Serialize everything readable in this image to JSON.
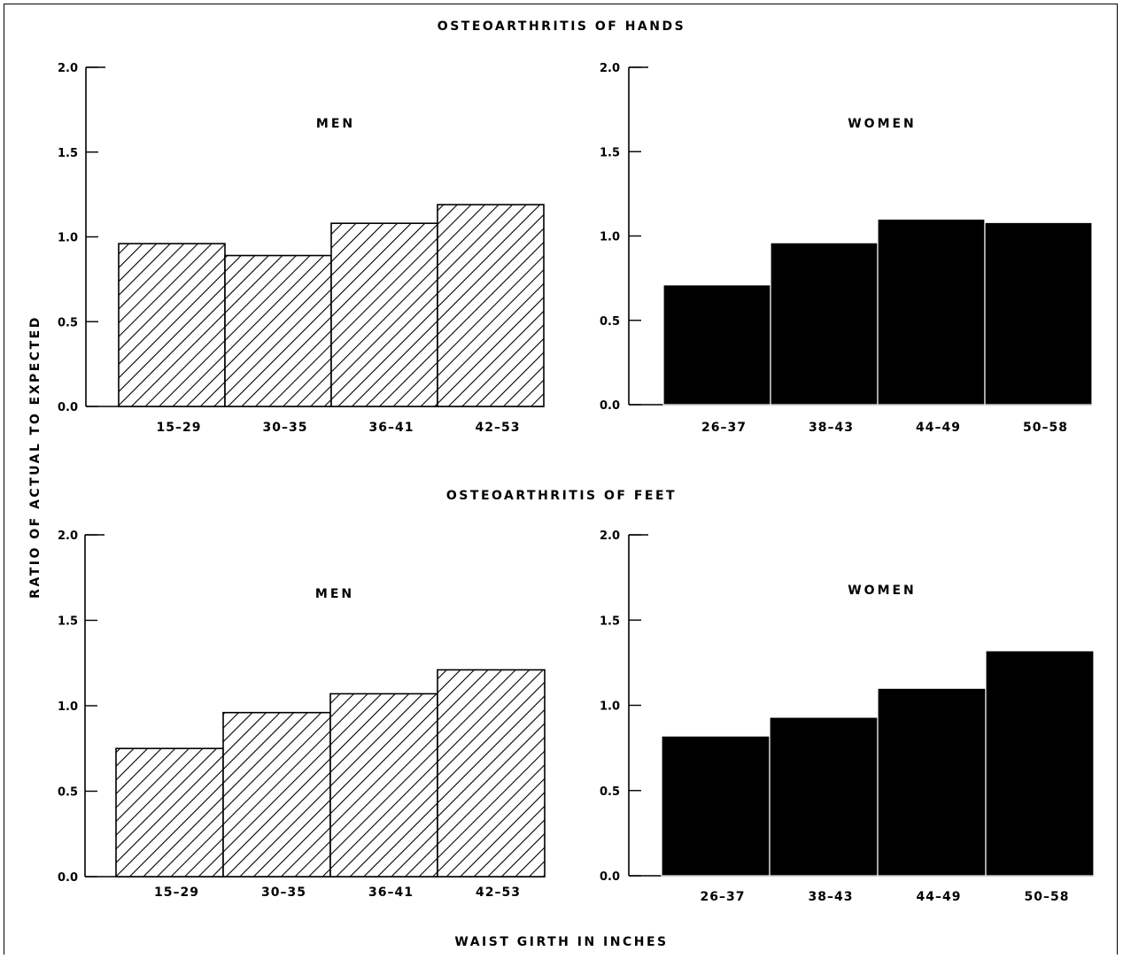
{
  "figure": {
    "hands_title": "OSTEOARTHRITIS OF HANDS",
    "feet_title": "OSTEOARTHRITIS OF FEET",
    "ylabel": "RATIO OF ACTUAL TO EXPECTED",
    "xlabel": "WAIST GIRTH IN INCHES"
  },
  "colors": {
    "ink": "#000000",
    "paper": "#ffffff"
  },
  "chart_data": [
    {
      "type": "bar",
      "panel": "hands-men",
      "label": "MEN",
      "categories": [
        "15–29",
        "30–35",
        "36–41",
        "42–53"
      ],
      "values": [
        0.96,
        0.89,
        1.08,
        1.19
      ],
      "ylim": [
        0,
        2.0
      ],
      "yticks": [
        "0.0",
        "0.5",
        "1.0",
        "1.5",
        "2.0"
      ],
      "fill": "hatched"
    },
    {
      "type": "bar",
      "panel": "hands-women",
      "label": "WOMEN",
      "categories": [
        "26–37",
        "38–43",
        "44–49",
        "50–58"
      ],
      "values": [
        0.71,
        0.96,
        1.1,
        1.08
      ],
      "ylim": [
        0,
        2.0
      ],
      "yticks": [
        "0.0",
        "0.5",
        "1.0",
        "1.5",
        "2.0"
      ],
      "fill": "solid"
    },
    {
      "type": "bar",
      "panel": "feet-men",
      "label": "MEN",
      "categories": [
        "15–29",
        "30–35",
        "36–41",
        "42–53"
      ],
      "values": [
        0.75,
        0.96,
        1.07,
        1.21
      ],
      "ylim": [
        0,
        2.0
      ],
      "yticks": [
        "0.0",
        "0.5",
        "1.0",
        "1.5",
        "2.0"
      ],
      "fill": "hatched"
    },
    {
      "type": "bar",
      "panel": "feet-women",
      "label": "WOMEN",
      "categories": [
        "26–37",
        "38–43",
        "44–49",
        "50–58"
      ],
      "values": [
        0.82,
        0.93,
        1.1,
        1.32
      ],
      "ylim": [
        0,
        2.0
      ],
      "yticks": [
        "0.0",
        "0.5",
        "1.0",
        "1.5",
        "2.0"
      ],
      "fill": "solid"
    }
  ]
}
